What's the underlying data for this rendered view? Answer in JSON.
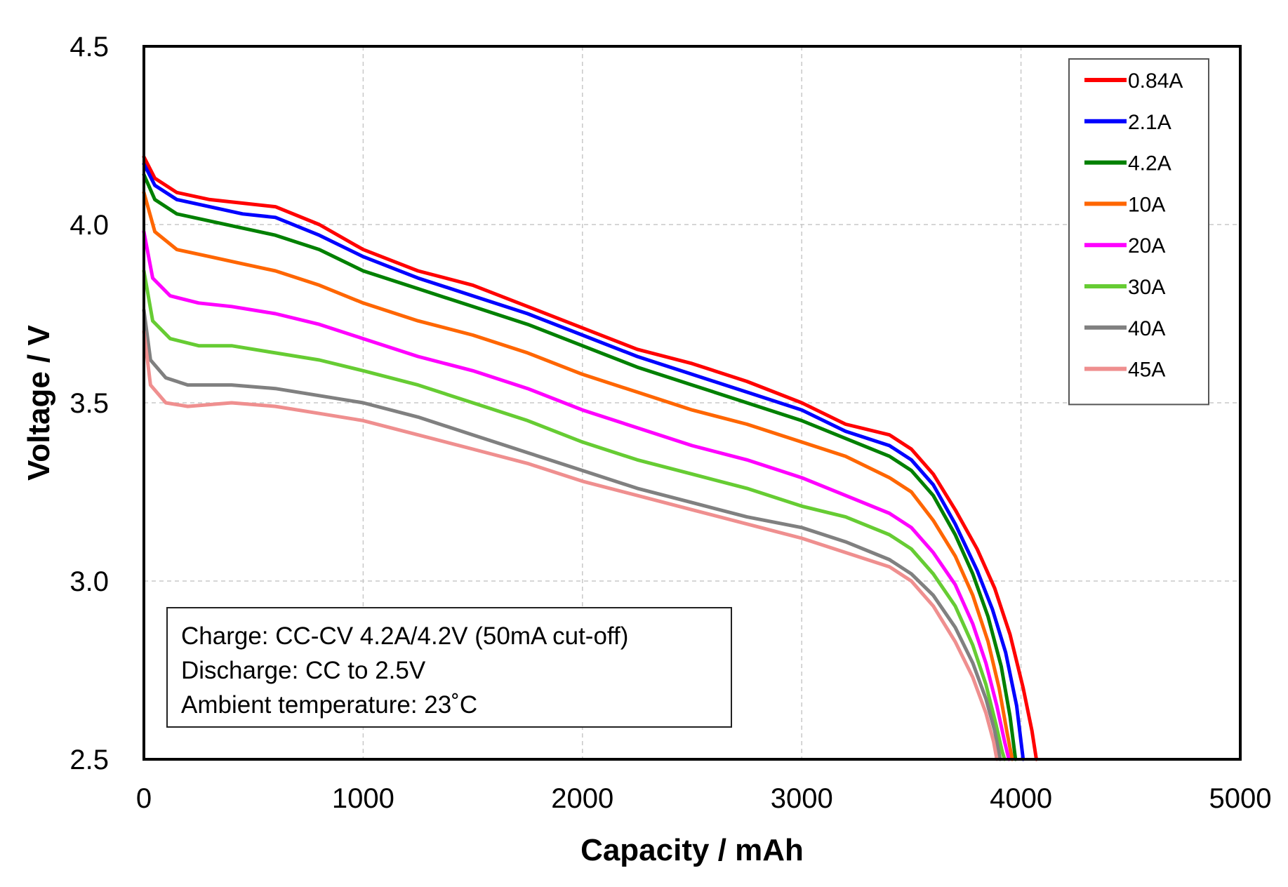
{
  "chart_data": {
    "type": "line",
    "title": "",
    "xlabel": "Capacity / mAh",
    "ylabel": "Voltage / V",
    "xlim": [
      0,
      5000
    ],
    "ylim": [
      2.5,
      4.5
    ],
    "xticks": [
      0,
      1000,
      2000,
      3000,
      4000,
      5000
    ],
    "yticks": [
      2.5,
      3.0,
      3.5,
      4.0,
      4.5
    ],
    "xtick_labels": [
      "0",
      "1000",
      "2000",
      "3000",
      "4000",
      "5000"
    ],
    "ytick_labels": [
      "2.5",
      "3.0",
      "3.5",
      "4.0",
      "4.5"
    ],
    "grid": true,
    "legend_position": "top-right",
    "series": [
      {
        "name": "0.84A",
        "color": "#ff0000",
        "points": [
          [
            0,
            4.19
          ],
          [
            50,
            4.13
          ],
          [
            150,
            4.09
          ],
          [
            300,
            4.07
          ],
          [
            450,
            4.06
          ],
          [
            600,
            4.05
          ],
          [
            800,
            4.0
          ],
          [
            1000,
            3.93
          ],
          [
            1250,
            3.87
          ],
          [
            1500,
            3.83
          ],
          [
            1750,
            3.77
          ],
          [
            2000,
            3.71
          ],
          [
            2250,
            3.65
          ],
          [
            2500,
            3.61
          ],
          [
            2750,
            3.56
          ],
          [
            3000,
            3.5
          ],
          [
            3200,
            3.44
          ],
          [
            3400,
            3.41
          ],
          [
            3500,
            3.37
          ],
          [
            3600,
            3.3
          ],
          [
            3700,
            3.2
          ],
          [
            3800,
            3.09
          ],
          [
            3880,
            2.98
          ],
          [
            3950,
            2.85
          ],
          [
            4010,
            2.7
          ],
          [
            4050,
            2.58
          ],
          [
            4070,
            2.5
          ]
        ]
      },
      {
        "name": "2.1A",
        "color": "#0000ff",
        "points": [
          [
            0,
            4.17
          ],
          [
            50,
            4.11
          ],
          [
            150,
            4.07
          ],
          [
            300,
            4.05
          ],
          [
            450,
            4.03
          ],
          [
            600,
            4.02
          ],
          [
            800,
            3.97
          ],
          [
            1000,
            3.91
          ],
          [
            1250,
            3.85
          ],
          [
            1500,
            3.8
          ],
          [
            1750,
            3.75
          ],
          [
            2000,
            3.69
          ],
          [
            2250,
            3.63
          ],
          [
            2500,
            3.58
          ],
          [
            2750,
            3.53
          ],
          [
            3000,
            3.48
          ],
          [
            3200,
            3.42
          ],
          [
            3400,
            3.38
          ],
          [
            3500,
            3.34
          ],
          [
            3600,
            3.27
          ],
          [
            3700,
            3.16
          ],
          [
            3800,
            3.03
          ],
          [
            3870,
            2.92
          ],
          [
            3930,
            2.8
          ],
          [
            3980,
            2.65
          ],
          [
            4010,
            2.5
          ]
        ]
      },
      {
        "name": "4.2A",
        "color": "#008000",
        "points": [
          [
            0,
            4.14
          ],
          [
            50,
            4.07
          ],
          [
            150,
            4.03
          ],
          [
            300,
            4.01
          ],
          [
            450,
            3.99
          ],
          [
            600,
            3.97
          ],
          [
            800,
            3.93
          ],
          [
            1000,
            3.87
          ],
          [
            1250,
            3.82
          ],
          [
            1500,
            3.77
          ],
          [
            1750,
            3.72
          ],
          [
            2000,
            3.66
          ],
          [
            2250,
            3.6
          ],
          [
            2500,
            3.55
          ],
          [
            2750,
            3.5
          ],
          [
            3000,
            3.45
          ],
          [
            3200,
            3.4
          ],
          [
            3400,
            3.35
          ],
          [
            3500,
            3.31
          ],
          [
            3600,
            3.24
          ],
          [
            3700,
            3.13
          ],
          [
            3780,
            3.02
          ],
          [
            3850,
            2.9
          ],
          [
            3910,
            2.76
          ],
          [
            3950,
            2.62
          ],
          [
            3975,
            2.5
          ]
        ]
      },
      {
        "name": "10A",
        "color": "#ff6600",
        "points": [
          [
            0,
            4.09
          ],
          [
            50,
            3.98
          ],
          [
            150,
            3.93
          ],
          [
            300,
            3.91
          ],
          [
            450,
            3.89
          ],
          [
            600,
            3.87
          ],
          [
            800,
            3.83
          ],
          [
            1000,
            3.78
          ],
          [
            1250,
            3.73
          ],
          [
            1500,
            3.69
          ],
          [
            1750,
            3.64
          ],
          [
            2000,
            3.58
          ],
          [
            2250,
            3.53
          ],
          [
            2500,
            3.48
          ],
          [
            2750,
            3.44
          ],
          [
            3000,
            3.39
          ],
          [
            3200,
            3.35
          ],
          [
            3400,
            3.29
          ],
          [
            3500,
            3.25
          ],
          [
            3600,
            3.17
          ],
          [
            3700,
            3.07
          ],
          [
            3780,
            2.96
          ],
          [
            3850,
            2.83
          ],
          [
            3900,
            2.7
          ],
          [
            3935,
            2.58
          ],
          [
            3960,
            2.5
          ]
        ]
      },
      {
        "name": "20A",
        "color": "#ff00ff",
        "points": [
          [
            0,
            3.98
          ],
          [
            40,
            3.85
          ],
          [
            120,
            3.8
          ],
          [
            250,
            3.78
          ],
          [
            400,
            3.77
          ],
          [
            600,
            3.75
          ],
          [
            800,
            3.72
          ],
          [
            1000,
            3.68
          ],
          [
            1250,
            3.63
          ],
          [
            1500,
            3.59
          ],
          [
            1750,
            3.54
          ],
          [
            2000,
            3.48
          ],
          [
            2250,
            3.43
          ],
          [
            2500,
            3.38
          ],
          [
            2750,
            3.34
          ],
          [
            3000,
            3.29
          ],
          [
            3200,
            3.24
          ],
          [
            3400,
            3.19
          ],
          [
            3500,
            3.15
          ],
          [
            3600,
            3.08
          ],
          [
            3700,
            2.99
          ],
          [
            3780,
            2.88
          ],
          [
            3840,
            2.77
          ],
          [
            3890,
            2.65
          ],
          [
            3925,
            2.55
          ],
          [
            3945,
            2.5
          ]
        ]
      },
      {
        "name": "30A",
        "color": "#66cc33",
        "points": [
          [
            0,
            3.87
          ],
          [
            40,
            3.73
          ],
          [
            120,
            3.68
          ],
          [
            250,
            3.66
          ],
          [
            400,
            3.66
          ],
          [
            600,
            3.64
          ],
          [
            800,
            3.62
          ],
          [
            1000,
            3.59
          ],
          [
            1250,
            3.55
          ],
          [
            1500,
            3.5
          ],
          [
            1750,
            3.45
          ],
          [
            2000,
            3.39
          ],
          [
            2250,
            3.34
          ],
          [
            2500,
            3.3
          ],
          [
            2750,
            3.26
          ],
          [
            3000,
            3.21
          ],
          [
            3200,
            3.18
          ],
          [
            3400,
            3.13
          ],
          [
            3500,
            3.09
          ],
          [
            3600,
            3.02
          ],
          [
            3700,
            2.93
          ],
          [
            3780,
            2.82
          ],
          [
            3840,
            2.71
          ],
          [
            3885,
            2.6
          ],
          [
            3915,
            2.52
          ],
          [
            3925,
            2.5
          ]
        ]
      },
      {
        "name": "40A",
        "color": "#808080",
        "points": [
          [
            0,
            3.76
          ],
          [
            30,
            3.62
          ],
          [
            100,
            3.57
          ],
          [
            200,
            3.55
          ],
          [
            400,
            3.55
          ],
          [
            600,
            3.54
          ],
          [
            800,
            3.52
          ],
          [
            1000,
            3.5
          ],
          [
            1250,
            3.46
          ],
          [
            1500,
            3.41
          ],
          [
            1750,
            3.36
          ],
          [
            2000,
            3.31
          ],
          [
            2250,
            3.26
          ],
          [
            2500,
            3.22
          ],
          [
            2750,
            3.18
          ],
          [
            3000,
            3.15
          ],
          [
            3200,
            3.11
          ],
          [
            3400,
            3.06
          ],
          [
            3500,
            3.02
          ],
          [
            3600,
            2.96
          ],
          [
            3700,
            2.87
          ],
          [
            3780,
            2.77
          ],
          [
            3840,
            2.67
          ],
          [
            3880,
            2.58
          ],
          [
            3905,
            2.5
          ]
        ]
      },
      {
        "name": "45A",
        "color": "#ef8f8f",
        "points": [
          [
            0,
            3.7
          ],
          [
            30,
            3.55
          ],
          [
            100,
            3.5
          ],
          [
            200,
            3.49
          ],
          [
            400,
            3.5
          ],
          [
            600,
            3.49
          ],
          [
            800,
            3.47
          ],
          [
            1000,
            3.45
          ],
          [
            1250,
            3.41
          ],
          [
            1500,
            3.37
          ],
          [
            1750,
            3.33
          ],
          [
            2000,
            3.28
          ],
          [
            2250,
            3.24
          ],
          [
            2500,
            3.2
          ],
          [
            2750,
            3.16
          ],
          [
            3000,
            3.12
          ],
          [
            3200,
            3.08
          ],
          [
            3400,
            3.04
          ],
          [
            3500,
            3.0
          ],
          [
            3600,
            2.93
          ],
          [
            3700,
            2.83
          ],
          [
            3780,
            2.73
          ],
          [
            3840,
            2.63
          ],
          [
            3875,
            2.55
          ],
          [
            3890,
            2.5
          ]
        ]
      }
    ],
    "annotation": [
      "Charge:  CC-CV 4.2A/4.2V (50mA cut-off)",
      "Discharge:  CC to 2.5V",
      "Ambient  temperature:  23˚C"
    ]
  }
}
